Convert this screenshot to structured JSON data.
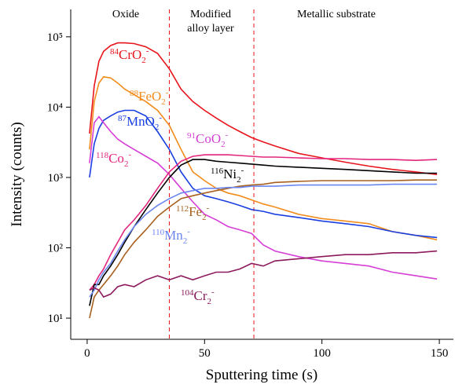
{
  "chart_data": {
    "type": "line",
    "xlabel": "Sputtering time (s)",
    "ylabel": "Intensity (counts)",
    "log_y": true,
    "xlim": [
      -7,
      156
    ],
    "ylim": [
      5,
      245000
    ],
    "xticks": [
      0,
      50,
      100,
      150
    ],
    "yticks": [
      {
        "value": 10,
        "label": "10¹"
      },
      {
        "value": 100,
        "label": "10²"
      },
      {
        "value": 1000,
        "label": "10³"
      },
      {
        "value": 10000,
        "label": "10⁴"
      },
      {
        "value": 100000,
        "label": "10⁵"
      }
    ],
    "boundaries": [
      35,
      71
    ],
    "boundary_color": "#e8141c",
    "regions": [
      "Oxide",
      [
        "Modified",
        "alloy layer"
      ],
      "Metallic substrate"
    ],
    "x": [
      1,
      3,
      5,
      7,
      10,
      13,
      16,
      20,
      25,
      30,
      35,
      40,
      45,
      50,
      55,
      60,
      65,
      70,
      75,
      80,
      90,
      100,
      110,
      120,
      130,
      140,
      149
    ],
    "series": [
      {
        "mass": "84",
        "name": "CrO",
        "subscript": "2",
        "charge": "-",
        "color": "#e8141c",
        "values": [
          4200,
          20000,
          45000,
          62000,
          75000,
          82000,
          82000,
          80000,
          72000,
          58000,
          35000,
          18000,
          12000,
          9000,
          7000,
          5500,
          4500,
          3700,
          3200,
          2800,
          2200,
          1900,
          1650,
          1450,
          1300,
          1200,
          1100
        ]
      },
      {
        "mass": "88",
        "name": "FeO",
        "subscript": "2",
        "charge": "-",
        "color": "#f28c1c",
        "values": [
          2500,
          12000,
          22000,
          27000,
          26000,
          22000,
          18000,
          15000,
          12000,
          9000,
          5500,
          2500,
          1200,
          900,
          700,
          600,
          550,
          480,
          420,
          380,
          300,
          260,
          240,
          220,
          170,
          150,
          130
        ]
      },
      {
        "mass": "87",
        "name": "MnO",
        "subscript": "2",
        "charge": "-",
        "color": "#1a3fe0",
        "values": [
          1000,
          3000,
          5000,
          6500,
          7500,
          8500,
          9000,
          9000,
          7500,
          4500,
          2500,
          1200,
          700,
          550,
          500,
          450,
          400,
          350,
          330,
          300,
          270,
          240,
          220,
          200,
          170,
          150,
          140
        ]
      },
      {
        "mass": "91",
        "name": "CoO",
        "subscript": "2",
        "charge": "-",
        "color": "#d63fd6",
        "values": [
          1600,
          6000,
          7300,
          6000,
          4500,
          3500,
          3000,
          2500,
          2000,
          1600,
          1100,
          700,
          450,
          300,
          250,
          200,
          180,
          160,
          110,
          90,
          75,
          65,
          60,
          55,
          45,
          40,
          36
        ]
      },
      {
        "mass": "118",
        "name": "Co",
        "subscript": "2",
        "charge": "-",
        "color": "#e3267e",
        "values": [
          25,
          30,
          40,
          50,
          80,
          120,
          180,
          250,
          400,
          700,
          1200,
          1700,
          2000,
          2100,
          2100,
          2100,
          2050,
          2000,
          1950,
          1950,
          1900,
          1850,
          1850,
          1800,
          1800,
          1750,
          1800
        ]
      },
      {
        "mass": "116",
        "name": "Ni",
        "subscript": "2",
        "charge": "-",
        "color": "#000000",
        "values": [
          15,
          30,
          30,
          40,
          55,
          80,
          120,
          200,
          350,
          600,
          1000,
          1500,
          1800,
          1800,
          1700,
          1650,
          1600,
          1550,
          1500,
          1450,
          1400,
          1350,
          1300,
          1250,
          1200,
          1150,
          1150
        ]
      },
      {
        "mass": "112",
        "name": "Fe",
        "subscript": "2",
        "charge": "-",
        "color": "#a8601e",
        "values": [
          10,
          20,
          25,
          30,
          40,
          55,
          80,
          120,
          180,
          280,
          380,
          500,
          550,
          600,
          650,
          700,
          750,
          780,
          800,
          850,
          880,
          900,
          900,
          900,
          900,
          920,
          920
        ]
      },
      {
        "mass": "110",
        "name": "Mn",
        "subscript": "2",
        "charge": "-",
        "color": "#6b86f0",
        "values": [
          20,
          25,
          35,
          45,
          60,
          90,
          130,
          200,
          300,
          400,
          500,
          600,
          650,
          700,
          700,
          720,
          720,
          750,
          750,
          750,
          780,
          780,
          780,
          780,
          800,
          800,
          800
        ]
      },
      {
        "mass": "104",
        "name": "Cr",
        "subscript": "2",
        "charge": "-",
        "color": "#8c1a5c",
        "values": [
          25,
          27,
          25,
          20,
          22,
          28,
          30,
          28,
          35,
          40,
          35,
          40,
          35,
          40,
          45,
          45,
          50,
          60,
          55,
          65,
          70,
          75,
          80,
          80,
          85,
          85,
          90
        ]
      }
    ]
  }
}
